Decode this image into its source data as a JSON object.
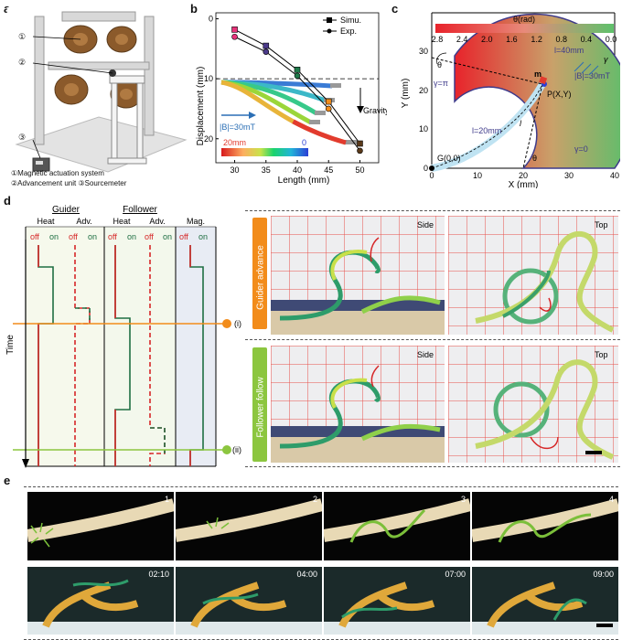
{
  "panels": {
    "a": {
      "label": "a",
      "callouts": [
        "①",
        "②",
        "③"
      ],
      "legend": [
        "①Magnetic actuation system",
        "②Advancement unit ③Sourcemeter"
      ]
    },
    "b": {
      "label": "b",
      "ylabel": "Displacement (mm)",
      "xlabel": "Length (mm)",
      "legend": [
        "Simu.",
        "Exp."
      ],
      "field": "|B|=30mT",
      "gravity": "Gravity",
      "cbar_left": "20mm",
      "cbar_right": "0"
    },
    "c": {
      "label": "c",
      "cbar_title": "θ(rad)",
      "cbar_ticks": [
        "2.8",
        "2.4",
        "2.0",
        "1.6",
        "1.2",
        "0.8",
        "0.4",
        "0.0"
      ],
      "ylabel": "Y (mm)",
      "xlabel": "X (mm)",
      "gamma_pi": "γ=π",
      "gamma_0": "γ=0",
      "l40": "l=40mm",
      "l20": "l=20mm",
      "field": "|B|=30mT",
      "m": "m",
      "P": "P(X,Y)",
      "G": "G(0,0)",
      "theta": "θ",
      "gamma": "γ",
      "l": "l"
    },
    "d": {
      "label": "d",
      "guider": "Guider",
      "follower": "Follower",
      "heat": "Heat",
      "adv": "Adv.",
      "mag": "Mag.",
      "off": "off",
      "on": "on",
      "time": "Time",
      "mark_i": "(i)",
      "mark_ii": "(ii)",
      "row1_label": "Guider advance",
      "row2_label": "Follower follow",
      "side": "Side",
      "top": "Top"
    },
    "e": {
      "label": "e",
      "top_labels": [
        "1",
        "2",
        "3",
        "4"
      ],
      "bottom_labels": [
        "02:10",
        "04:00",
        "07:00",
        "09:00"
      ]
    }
  },
  "chart_data": {
    "type": "line",
    "title": "",
    "xlabel": "Length (mm)",
    "ylabel": "Displacement (mm)",
    "x": [
      30,
      35,
      40,
      45,
      50
    ],
    "xlim": [
      27,
      53
    ],
    "ylim": [
      -1,
      24
    ],
    "y_inverted": true,
    "dashed_reference_y": 10,
    "series": [
      {
        "name": "Simu.",
        "values": [
          1.8,
          4.5,
          8.5,
          13.8,
          20.8
        ]
      },
      {
        "name": "Exp.",
        "values": [
          3.0,
          5.5,
          9.5,
          15.0,
          22.0
        ]
      }
    ],
    "xticks": [
      "30",
      "35",
      "40",
      "45",
      "50"
    ],
    "yticks": [
      "0",
      "10",
      "20"
    ]
  },
  "colors": {
    "orange": "#f28c1b",
    "green": "#8cc63f",
    "darkgreen": "#1f6f43",
    "red": "#d62728",
    "blue": "#2b4a9b"
  }
}
